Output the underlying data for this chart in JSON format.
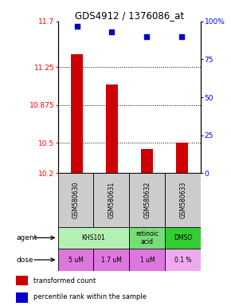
{
  "title": "GDS4912 / 1376086_at",
  "samples": [
    "GSM580630",
    "GSM580631",
    "GSM580632",
    "GSM580633"
  ],
  "bar_values": [
    11.38,
    11.075,
    10.44,
    10.5
  ],
  "dot_values": [
    97,
    93,
    90,
    90
  ],
  "ylim_left": [
    10.2,
    11.7
  ],
  "ylim_right": [
    0,
    100
  ],
  "yticks_left": [
    10.2,
    10.5,
    10.875,
    11.25,
    11.7
  ],
  "yticks_right": [
    0,
    25,
    50,
    75,
    100
  ],
  "ytick_labels_left": [
    "10.2",
    "10.5",
    "10.875",
    "11.25",
    "11.7"
  ],
  "ytick_labels_right": [
    "0",
    "25",
    "50",
    "75",
    "100%"
  ],
  "hlines": [
    10.5,
    10.875,
    11.25
  ],
  "bar_color": "#cc0000",
  "dot_color": "#0000cc",
  "bar_bottom": 10.2,
  "dose_labels": [
    "5 uM",
    "1.7 uM",
    "1 uM",
    "0.1 %"
  ],
  "sample_bg": "#cccccc",
  "legend_red": "transformed count",
  "legend_blue": "percentile rank within the sample",
  "agent_info": [
    [
      0,
      2,
      "KHS101",
      "#b3f0b3"
    ],
    [
      2,
      1,
      "retinoic\nacid",
      "#77dd77"
    ],
    [
      3,
      1,
      "DMSO",
      "#33cc33"
    ]
  ],
  "dose_colors": [
    "#dd77dd",
    "#dd77dd",
    "#dd77dd",
    "#eeaaee"
  ]
}
